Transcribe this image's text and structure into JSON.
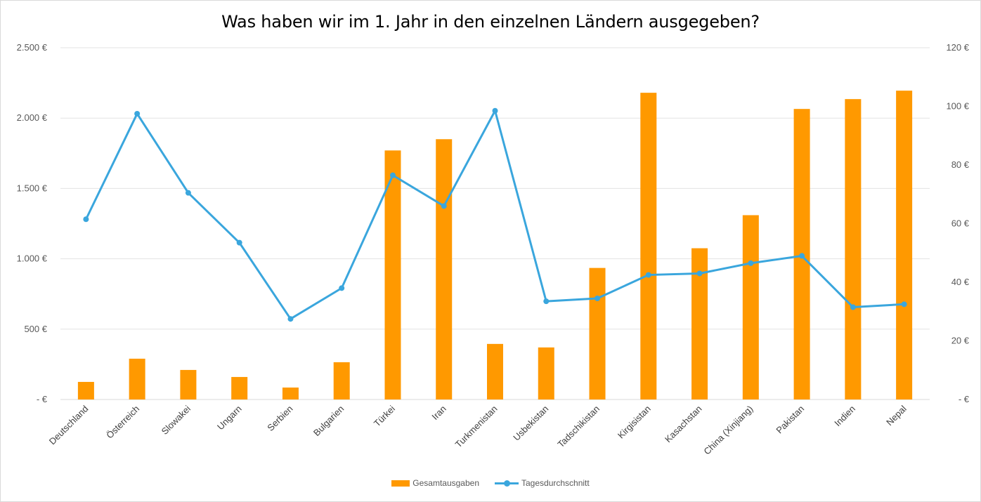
{
  "chart_data": {
    "type": "bar+line",
    "title": "Was haben wir im 1. Jahr in den einzelnen Ländern ausgegeben?",
    "categories": [
      "Deutschland",
      "Österreich",
      "Slowakei",
      "Ungarn",
      "Serbien",
      "Bulgarien",
      "Türkei",
      "Iran",
      "Turkmenistan",
      "Usbekistan",
      "Tadschikistan",
      "Kirgisistan",
      "Kasachstan",
      "China (Xinjiang)",
      "Pakistan",
      "Indien",
      "Nepal"
    ],
    "series": [
      {
        "name": "Gesamtausgaben",
        "type": "bar",
        "axis": "left",
        "color": "#FF9900",
        "values": [
          125,
          290,
          210,
          160,
          85,
          265,
          1770,
          1850,
          395,
          370,
          935,
          2180,
          1075,
          1310,
          2065,
          2135,
          2195
        ]
      },
      {
        "name": "Tagesdurchschnitt",
        "type": "line",
        "axis": "right",
        "color": "#3AA6DD",
        "values": [
          61.5,
          97.5,
          70.5,
          53.5,
          27.5,
          38,
          76.5,
          66,
          98.5,
          33.5,
          34.5,
          42.5,
          43,
          46.5,
          49,
          31.5,
          32.5
        ]
      }
    ],
    "y_left": {
      "min": 0,
      "max": 2500,
      "tick_labels": [
        "- €",
        "500 €",
        "1.000 €",
        "1.500 €",
        "2.000 €",
        "2.500 €"
      ]
    },
    "y_right": {
      "min": 0,
      "max": 120,
      "tick_labels": [
        "- €",
        "20 €",
        "40 €",
        "60 €",
        "80 €",
        "100 €",
        "120 €"
      ]
    },
    "grid": true,
    "legend_position": "bottom"
  }
}
